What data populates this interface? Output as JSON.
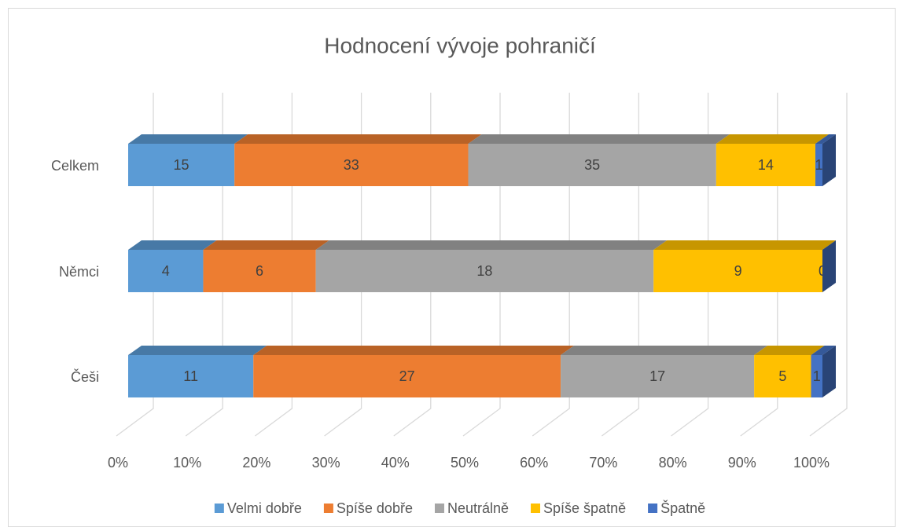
{
  "chart_data": {
    "type": "bar",
    "orientation": "horizontal",
    "stacking": "percent",
    "title": "Hodnocení vývoje pohraničí",
    "categories": [
      "Celkem",
      "Němci",
      "Češi"
    ],
    "series": [
      {
        "name": "Velmi dobře",
        "color": "#5b9bd5",
        "values": [
          15,
          4,
          11
        ]
      },
      {
        "name": "Spíše dobře",
        "color": "#ed7d31",
        "values": [
          33,
          6,
          27
        ]
      },
      {
        "name": "Neutrálně",
        "color": "#a5a5a5",
        "values": [
          35,
          18,
          17
        ]
      },
      {
        "name": "Spíše špatně",
        "color": "#ffc000",
        "values": [
          14,
          9,
          5
        ]
      },
      {
        "name": "Špatně",
        "color": "#4472c4",
        "values": [
          1,
          0,
          1
        ]
      }
    ],
    "xlim": [
      0,
      100
    ],
    "xticks": [
      {
        "value": 0,
        "label": "0%"
      },
      {
        "value": 10,
        "label": "10%"
      },
      {
        "value": 20,
        "label": "20%"
      },
      {
        "value": 30,
        "label": "30%"
      },
      {
        "value": 40,
        "label": "40%"
      },
      {
        "value": 50,
        "label": "50%"
      },
      {
        "value": 60,
        "label": "60%"
      },
      {
        "value": 70,
        "label": "70%"
      },
      {
        "value": 80,
        "label": "80%"
      },
      {
        "value": 90,
        "label": "90%"
      },
      {
        "value": 100,
        "label": "100%"
      }
    ],
    "grid": true,
    "legend": "bottom"
  }
}
